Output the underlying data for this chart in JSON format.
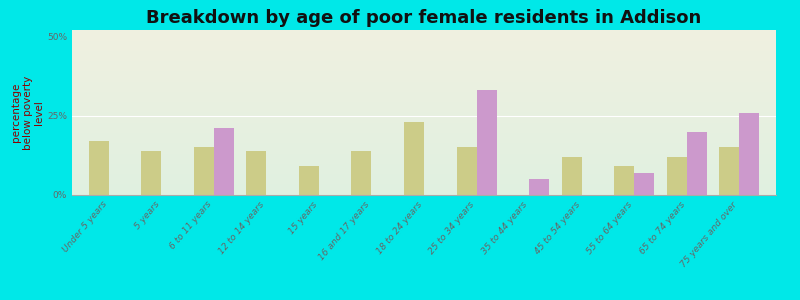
{
  "title": "Breakdown by age of poor female residents in Addison",
  "ylabel": "percentage\nbelow poverty\nlevel",
  "categories": [
    "Under 5 years",
    "5 years",
    "6 to 11 years",
    "12 to 14 years",
    "15 years",
    "16 and 17 years",
    "18 to 24 years",
    "25 to 34 years",
    "35 to 44 years",
    "45 to 54 years",
    "55 to 64 years",
    "65 to 74 years",
    "75 years and over"
  ],
  "addison_values": [
    0,
    0,
    21,
    0,
    0,
    0,
    0,
    33,
    5,
    0,
    7,
    20,
    26
  ],
  "wisconsin_values": [
    17,
    14,
    15,
    14,
    9,
    14,
    23,
    15,
    0,
    12,
    9,
    12,
    15
  ],
  "addison_color": "#cc99cc",
  "wisconsin_color": "#cccc88",
  "background_top": "#f0f0e0",
  "background_bottom": "#e0f0e0",
  "bg_outer": "#00e8e8",
  "ylim": [
    0,
    52
  ],
  "yticks": [
    0,
    25,
    50
  ],
  "ytick_labels": [
    "0%",
    "25%",
    "50%"
  ],
  "bar_width": 0.38,
  "title_fontsize": 13,
  "label_fontsize": 6.5,
  "ylabel_fontsize": 7.5
}
